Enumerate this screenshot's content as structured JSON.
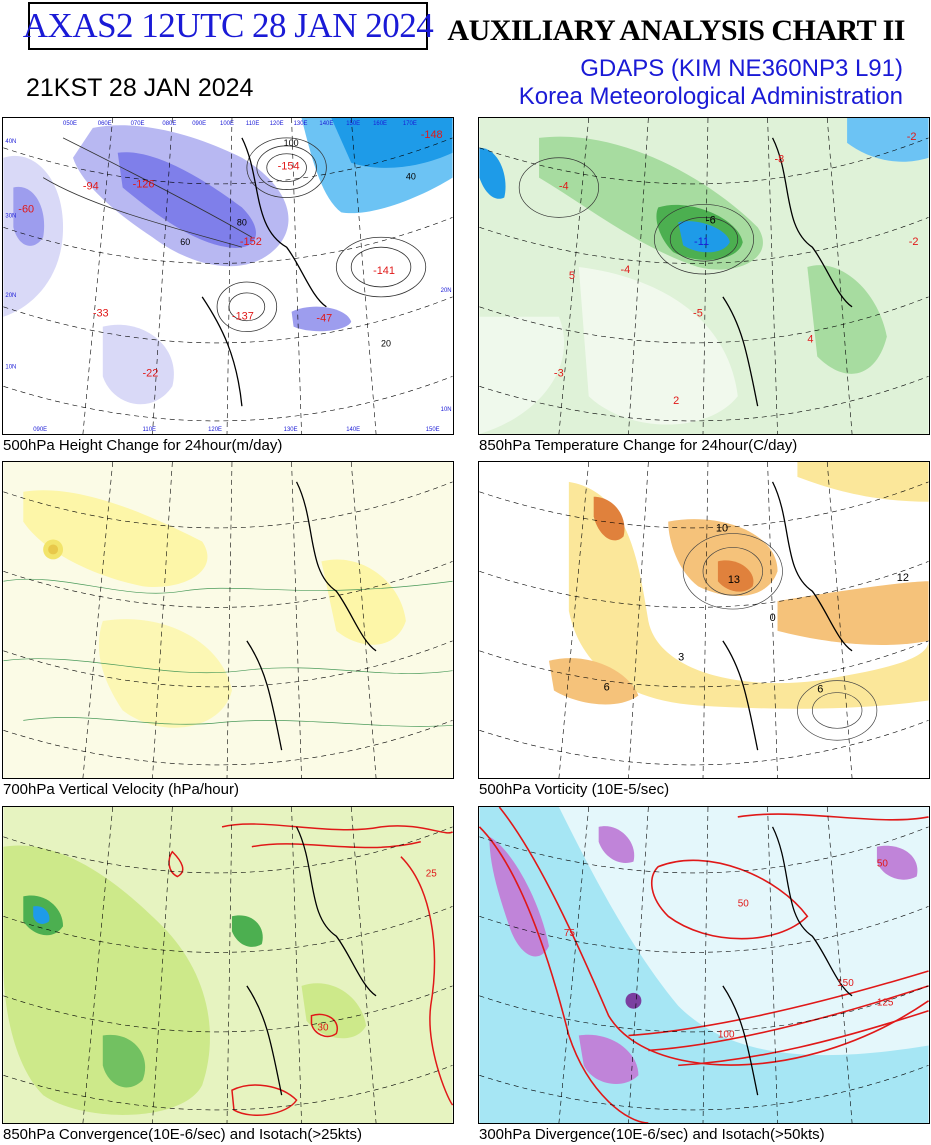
{
  "header": {
    "product_id": "AXAS2  12UTC 28 JAN 2024",
    "title": "AUXILIARY ANALYSIS CHART II",
    "model": "GDAPS (KIM NE360NP3 L91)",
    "agency": "Korea Meteorological Administration",
    "local_time": "21KST 28 JAN 2024"
  },
  "colors": {
    "header_blue": "#1a1ad6",
    "contour_red": "#e01818",
    "negative_purple": "#7f7fea",
    "negative_blue": "#1e9be8",
    "positive_green": "#8fd490",
    "yellow_fill": "#fdf6a8",
    "orange_fill": "#f5b25c",
    "cyan_fill": "#7fdcf0"
  },
  "panels": [
    {
      "caption": "500hPa Height Change for 24hour(m/day)",
      "labels": [
        "-154",
        "-152",
        "-137",
        "-141",
        "-126",
        "-94",
        "-60",
        "-22",
        "-47",
        "-33",
        "-148",
        "100",
        "80",
        "60",
        "40",
        "20"
      ]
    },
    {
      "caption": "850hPa Temperature Change for 24hour(C/day)",
      "labels": [
        "-11",
        "-6",
        "-4",
        "-5",
        "-3",
        "2",
        "4",
        "-8",
        "-2",
        "-4",
        "5",
        "-2"
      ]
    },
    {
      "caption": "700hPa Vertical Velocity (hPa/hour)",
      "labels": []
    },
    {
      "caption": "500hPa Vorticity (10E-5/sec)",
      "labels": [
        "10",
        "13",
        "6",
        "3",
        "0",
        "12",
        "6"
      ]
    },
    {
      "caption": "850hPa Convergence(10E-6/sec) and Isotach(>25kts)",
      "labels": [
        "25",
        "30"
      ]
    },
    {
      "caption": "300hPa Divergence(10E-6/sec) and Isotach(>50kts)",
      "labels": [
        "150",
        "100",
        "50",
        "125",
        "75",
        "50"
      ]
    }
  ],
  "map_ticks": {
    "lon_top": [
      "050E",
      "060E",
      "070E",
      "080E",
      "090E",
      "100E",
      "110E",
      "120E",
      "130E",
      "140E",
      "150E",
      "160E",
      "170E"
    ],
    "lon_bottom": [
      "090E",
      "100E",
      "110E",
      "120E",
      "130E",
      "140E",
      "150E"
    ],
    "lat_left": [
      "40N",
      "30N",
      "20N",
      "10N"
    ],
    "lat_right": [
      "40N",
      "30N",
      "20N",
      "10N"
    ]
  }
}
